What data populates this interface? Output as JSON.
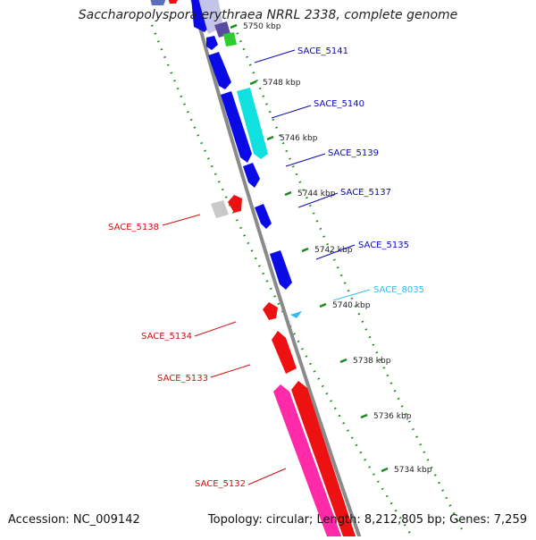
{
  "title": "Saccharopolyspora erythraea NRRL 2338, complete genome",
  "footer": {
    "accession": "Accession: NC_009142",
    "summary": "Topology: circular; Length: 8,212,805 bp; Genes: 7,259"
  },
  "scale_labels": [
    "5750 kbp",
    "5748 kbp",
    "5746 kbp",
    "5744 kbp",
    "5742 kbp",
    "5740 kbp",
    "5738 kbp",
    "5736 kbp",
    "5734 kbp"
  ],
  "colors": {
    "backbone": "#8a8a8a",
    "forward_gene": "#0a0ae6",
    "reverse_gene": "#ee1111",
    "cyan_gene": "#11e0e0",
    "pink_gene": "#ff2aa8",
    "light_blue_label": "#33bbee",
    "tick_green": "#1a8a1a"
  },
  "gene_labels": [
    {
      "text": "SACE_5141",
      "color": "#0a0ab4"
    },
    {
      "text": "SACE_5140",
      "color": "#0a0ab4"
    },
    {
      "text": "SACE_5139",
      "color": "#0a0ab4"
    },
    {
      "text": "SACE_5137",
      "color": "#0a0ab4"
    },
    {
      "text": "SACE_5135",
      "color": "#0a0ab4"
    },
    {
      "text": "SACE_8035",
      "color": "#33bbee"
    },
    {
      "text": "SACE_5138",
      "color": "#cc1111"
    },
    {
      "text": "SACE_5134",
      "color": "#cc1111"
    },
    {
      "text": "SACE_5133",
      "color": "#cc1111"
    },
    {
      "text": "SACE_5132",
      "color": "#cc1111"
    }
  ]
}
